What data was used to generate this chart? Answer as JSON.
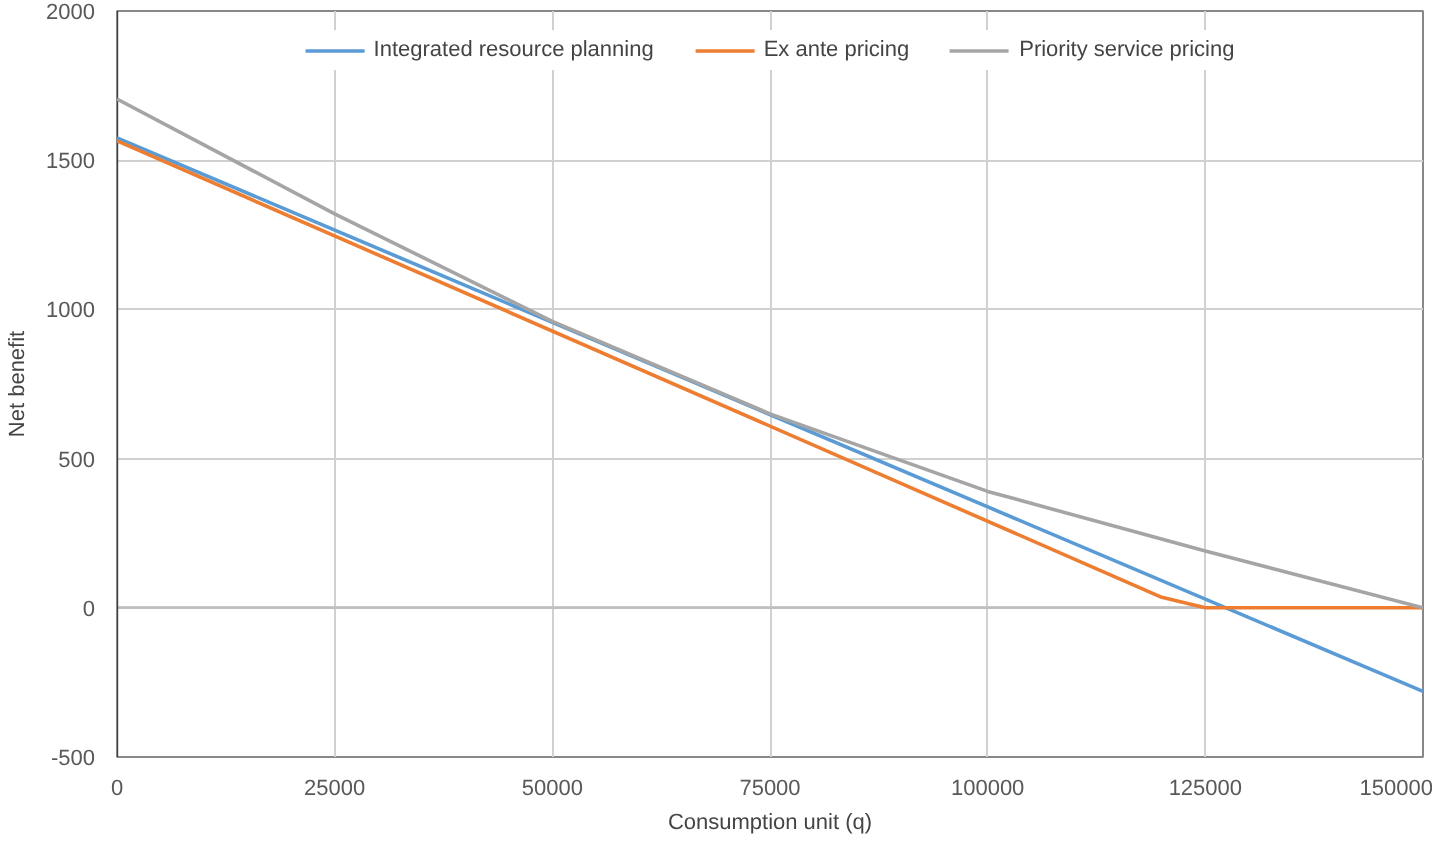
{
  "chart_data": {
    "type": "line",
    "xlabel": "Consumption unit (q)",
    "ylabel": "Net benefit",
    "xlim": [
      0,
      150000
    ],
    "xticks": [
      0,
      25000,
      50000,
      75000,
      100000,
      125000,
      150000
    ],
    "ylim": [
      -500,
      2000
    ],
    "yticks": [
      -500,
      0,
      500,
      1000,
      1500,
      2000
    ],
    "grid": true,
    "legend": "top",
    "line_style": "solid",
    "series": [
      {
        "name": "Integrated resource planning",
        "color": "#5b9bd5",
        "x": [
          0,
          150000
        ],
        "values": [
          1575,
          -280
        ]
      },
      {
        "name": "Ex ante pricing",
        "color": "#ed7d31",
        "x": [
          0,
          120000,
          125000,
          150000
        ],
        "values": [
          1565,
          35,
          0,
          0
        ]
      },
      {
        "name": "Priority service pricing",
        "color": "#a5a5a5",
        "x": [
          0,
          25000,
          50000,
          75000,
          100000,
          125000,
          150000
        ],
        "values": [
          1705,
          1320,
          960,
          650,
          390,
          190,
          0
        ]
      }
    ]
  }
}
